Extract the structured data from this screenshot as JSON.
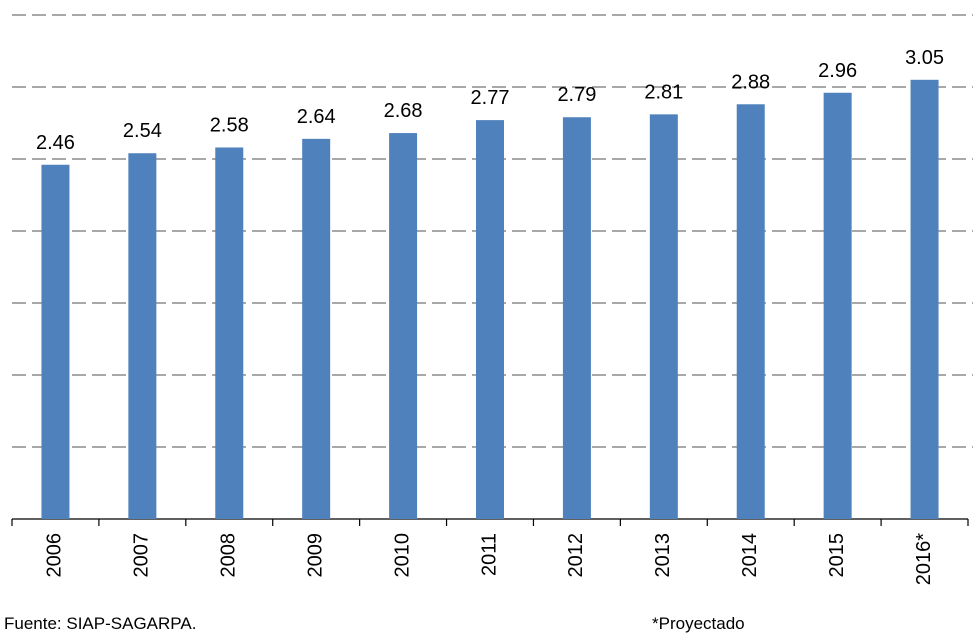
{
  "chart_data": {
    "type": "bar",
    "categories": [
      "2006",
      "2007",
      "2008",
      "2009",
      "2010",
      "2011",
      "2012",
      "2013",
      "2014",
      "2015",
      "2016*"
    ],
    "values": [
      2.46,
      2.54,
      2.58,
      2.64,
      2.68,
      2.77,
      2.79,
      2.81,
      2.88,
      2.96,
      3.05
    ],
    "color": "#4f81bd",
    "ylim": [
      0,
      3.5
    ],
    "yticks": [
      0,
      0.5,
      1,
      1.5,
      2,
      2.5,
      3,
      3.5
    ],
    "grid": true,
    "source": "Fuente: SIAP-SAGARPA.",
    "note": "*Proyectado"
  }
}
